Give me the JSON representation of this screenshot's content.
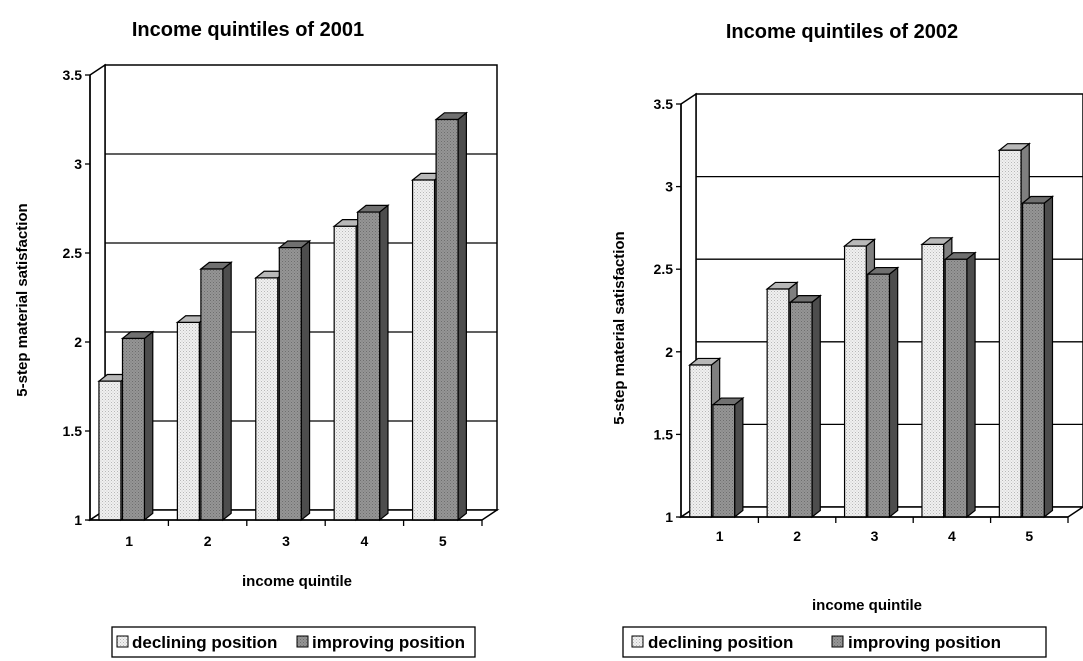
{
  "chart_data": [
    {
      "type": "bar",
      "title": "Income quintiles of 2001",
      "xlabel": "income quintile",
      "ylabel": "5-step material satisfaction",
      "categories": [
        "1",
        "2",
        "3",
        "4",
        "5"
      ],
      "yticks": [
        "1",
        "1.5",
        "2",
        "2.5",
        "3",
        "3.5"
      ],
      "ylim": [
        1,
        3.5
      ],
      "grid": true,
      "legend_position": "bottom",
      "series": [
        {
          "name": "declining position",
          "values": [
            1.78,
            2.11,
            2.36,
            2.65,
            2.91
          ]
        },
        {
          "name": "improving position",
          "values": [
            2.02,
            2.41,
            2.53,
            2.73,
            3.25
          ]
        }
      ]
    },
    {
      "type": "bar",
      "title": "Income quintiles of 2002",
      "xlabel": "income quintile",
      "ylabel": "5-step material satisfaction",
      "categories": [
        "1",
        "2",
        "3",
        "4",
        "5"
      ],
      "yticks": [
        "1",
        "1.5",
        "2",
        "2.5",
        "3",
        "3.5"
      ],
      "ylim": [
        1,
        3.5
      ],
      "grid": true,
      "legend_position": "bottom",
      "series": [
        {
          "name": "declining position",
          "values": [
            1.92,
            2.38,
            2.64,
            2.65,
            3.22
          ]
        },
        {
          "name": "improving position",
          "values": [
            1.68,
            2.3,
            2.47,
            2.56,
            2.9
          ]
        }
      ]
    }
  ],
  "colors": {
    "declining": "#e6e6e6",
    "improving": "#8c8c8c"
  }
}
